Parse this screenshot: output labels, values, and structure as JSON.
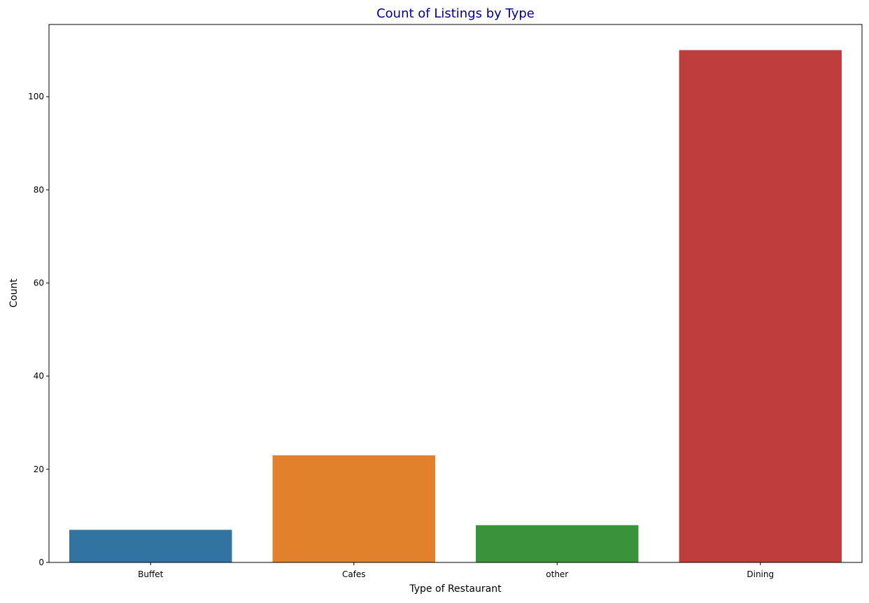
{
  "chart_data": {
    "type": "bar",
    "title": "Count of Listings by Type",
    "xlabel": "Type of Restaurant",
    "ylabel": "Count",
    "categories": [
      "Buffet",
      "Cafes",
      "other",
      "Dining"
    ],
    "values": [
      7,
      23,
      8,
      110
    ],
    "colors": [
      "#3274a1",
      "#e1812c",
      "#3a923a",
      "#c03d3e"
    ],
    "title_color": "#00008b",
    "ylim": [
      0,
      115.5
    ],
    "yticks": [
      0,
      20,
      40,
      60,
      80,
      100
    ],
    "grid": false,
    "legend": "none"
  }
}
